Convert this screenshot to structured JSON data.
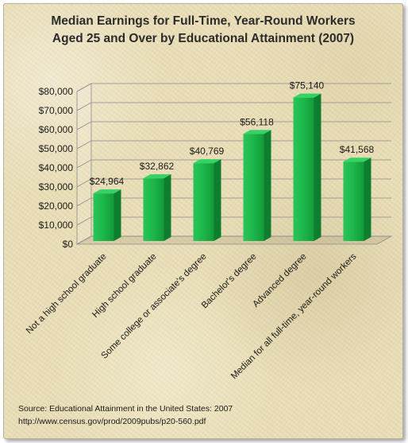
{
  "chart_data": {
    "type": "bar",
    "title_lines": [
      "Median Earnings for Full-Time, Year-Round Workers",
      "Aged 25 and Over by Educational Attainment (2007)"
    ],
    "categories": [
      "Not a high school graduate",
      "High school graduate",
      "Some college or associate's degree",
      "Bachelor's degree",
      "Advanced degree",
      "Median for all full-time, year-round workers"
    ],
    "values": [
      24964,
      32862,
      40769,
      56118,
      75140,
      41568
    ],
    "value_labels": [
      "$24,964",
      "$32,862",
      "$40,769",
      "$56,118",
      "$75,140",
      "$41,568"
    ],
    "y_ticks": [
      "$0",
      "$10,000",
      "$20,000",
      "$30,000",
      "$40,000",
      "$50,000",
      "$60,000",
      "$70,000",
      "$80,000"
    ],
    "ylim": [
      0,
      80000
    ],
    "grid": true,
    "legend": "none",
    "bar_color": "#1db64a"
  },
  "source": {
    "line1": "Source:  Educational Attainment in the United States: 2007",
    "line2": "http://www.census.gov/prod/2009pubs/p20-560.pdf"
  }
}
